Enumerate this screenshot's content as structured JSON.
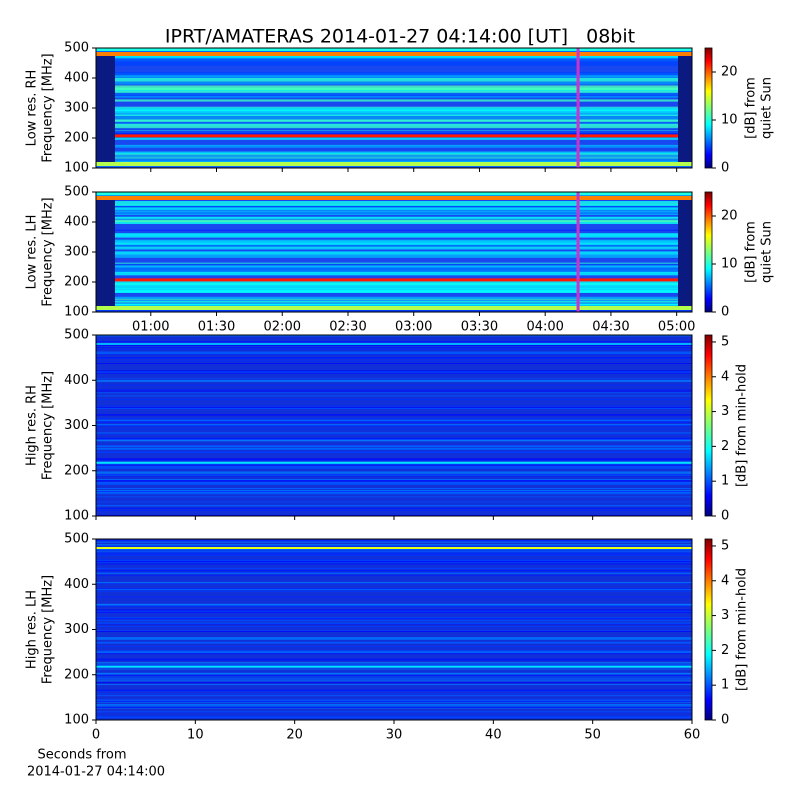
{
  "title": "IPRT/AMATERAS 2014-01-27 04:14:00 [UT]   08bit",
  "xlabel": [
    "Seconds from",
    "2014-01-27 04:14:00"
  ],
  "chart_data": [
    {
      "type": "heatmap",
      "ylabel": [
        "Low res. RH",
        "Frequency [MHz]"
      ],
      "clabel": [
        "[dB] from",
        "quiet Sun"
      ],
      "xlim": [
        35,
        307
      ],
      "xticks": [
        60,
        90,
        120,
        150,
        180,
        210,
        240,
        270,
        300
      ],
      "show_xtick_labels": false,
      "ylim": [
        100,
        500
      ],
      "yticks": [
        100,
        200,
        300,
        400,
        500
      ],
      "clim": [
        0,
        25
      ],
      "cticks": [
        0,
        10,
        20
      ],
      "marker_x": 255,
      "marker_color": "#cc33cc"
    },
    {
      "type": "heatmap",
      "ylabel": [
        "Low res. LH",
        "Frequency [MHz]"
      ],
      "clabel": [
        "[dB] from",
        "quiet Sun"
      ],
      "xlim": [
        35,
        307
      ],
      "xticks": [
        {
          "value": 60,
          "label": "01:00"
        },
        {
          "value": 90,
          "label": "01:30"
        },
        {
          "value": 120,
          "label": "02:00"
        },
        {
          "value": 150,
          "label": "02:30"
        },
        {
          "value": 180,
          "label": "03:00"
        },
        {
          "value": 210,
          "label": "03:30"
        },
        {
          "value": 240,
          "label": "04:00"
        },
        {
          "value": 270,
          "label": "04:30"
        },
        {
          "value": 300,
          "label": "05:00"
        }
      ],
      "show_xtick_labels": true,
      "xticks_top": true,
      "ylim": [
        100,
        500
      ],
      "yticks": [
        100,
        200,
        300,
        400,
        500
      ],
      "clim": [
        0,
        25
      ],
      "cticks": [
        0,
        10,
        20
      ],
      "marker_x": 255,
      "marker_color": "#cc33cc"
    },
    {
      "type": "heatmap",
      "ylabel": [
        "High res. RH",
        "Frequency [MHz]"
      ],
      "clabel": [
        "[dB] from min-hold"
      ],
      "xlim": [
        0,
        60
      ],
      "xticks": [
        0,
        10,
        20,
        30,
        40,
        50,
        60
      ],
      "show_xtick_labels": false,
      "ylim": [
        100,
        500
      ],
      "yticks": [
        100,
        200,
        300,
        400,
        500
      ],
      "clim": [
        0,
        5.2
      ],
      "cticks": [
        0,
        1,
        2,
        3,
        4,
        5
      ]
    },
    {
      "type": "heatmap",
      "ylabel": [
        "High res. LH",
        "Frequency [MHz]"
      ],
      "clabel": [
        "[dB] from min-hold"
      ],
      "xlim": [
        0,
        60
      ],
      "xticks": [
        0,
        10,
        20,
        30,
        40,
        50,
        60
      ],
      "show_xtick_labels": true,
      "ylim": [
        100,
        500
      ],
      "yticks": [
        100,
        200,
        300,
        400,
        500
      ],
      "clim": [
        0,
        5.2
      ],
      "cticks": [
        0,
        1,
        2,
        3,
        4,
        5
      ]
    }
  ]
}
